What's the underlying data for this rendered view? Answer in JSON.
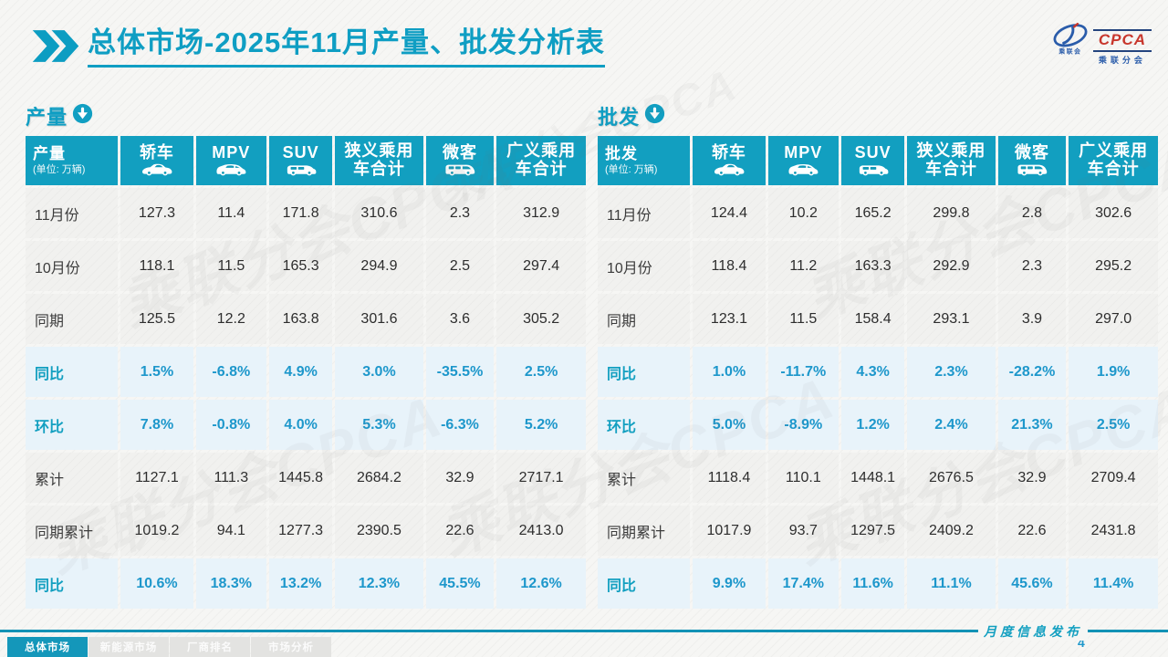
{
  "page": {
    "title_main": "总体市场",
    "title_rest": "-2025年11月产量、批发分析表",
    "watermark": "乘联分会CPCA",
    "footer_note": "月度信息发布",
    "page_number": "4"
  },
  "logo": {
    "name": "CPCA",
    "subtitle": "乘联分会"
  },
  "colors": {
    "accent_teal": "#129fc0",
    "percent_text": "#1d97cb",
    "value_row_bg": "#f1f1ef",
    "percent_row_bg": "#e8f3fa",
    "logo_red": "#c8372d",
    "logo_blue": "#2a5caa"
  },
  "tables": [
    {
      "id": "production",
      "section_label": "产量",
      "corner_title": "产量",
      "unit": "(单位: 万辆)",
      "columns": [
        {
          "label": "轿车",
          "icon": "sedan-icon"
        },
        {
          "label": "MPV",
          "icon": "mpv-icon"
        },
        {
          "label": "SUV",
          "icon": "suv-icon"
        },
        {
          "label": "狭义乘用车合计",
          "icon": null
        },
        {
          "label": "微客",
          "icon": "microvan-icon"
        },
        {
          "label": "广义乘用车合计",
          "icon": null
        }
      ],
      "rows": [
        {
          "label": "11月份",
          "style": "value",
          "cells": [
            "127.3",
            "11.4",
            "171.8",
            "310.6",
            "2.3",
            "312.9"
          ]
        },
        {
          "label": "10月份",
          "style": "value",
          "cells": [
            "118.1",
            "11.5",
            "165.3",
            "294.9",
            "2.5",
            "297.4"
          ]
        },
        {
          "label": "同期",
          "style": "value",
          "cells": [
            "125.5",
            "12.2",
            "163.8",
            "301.6",
            "3.6",
            "305.2"
          ]
        },
        {
          "label": "同比",
          "style": "percent",
          "cells": [
            "1.5%",
            "-6.8%",
            "4.9%",
            "3.0%",
            "-35.5%",
            "2.5%"
          ]
        },
        {
          "label": "环比",
          "style": "percent",
          "cells": [
            "7.8%",
            "-0.8%",
            "4.0%",
            "5.3%",
            "-6.3%",
            "5.2%"
          ]
        },
        {
          "label": "累计",
          "style": "value",
          "cells": [
            "1127.1",
            "111.3",
            "1445.8",
            "2684.2",
            "32.9",
            "2717.1"
          ]
        },
        {
          "label": "同期累计",
          "style": "value",
          "cells": [
            "1019.2",
            "94.1",
            "1277.3",
            "2390.5",
            "22.6",
            "2413.0"
          ]
        },
        {
          "label": "同比",
          "style": "percent",
          "cells": [
            "10.6%",
            "18.3%",
            "13.2%",
            "12.3%",
            "45.5%",
            "12.6%"
          ]
        }
      ]
    },
    {
      "id": "wholesale",
      "section_label": "批发",
      "corner_title": "批发",
      "unit": "(单位: 万辆)",
      "columns": [
        {
          "label": "轿车",
          "icon": "sedan-icon"
        },
        {
          "label": "MPV",
          "icon": "mpv-icon"
        },
        {
          "label": "SUV",
          "icon": "suv-icon"
        },
        {
          "label": "狭义乘用车合计",
          "icon": null
        },
        {
          "label": "微客",
          "icon": "microvan-icon"
        },
        {
          "label": "广义乘用车合计",
          "icon": null
        }
      ],
      "rows": [
        {
          "label": "11月份",
          "style": "value",
          "cells": [
            "124.4",
            "10.2",
            "165.2",
            "299.8",
            "2.8",
            "302.6"
          ]
        },
        {
          "label": "10月份",
          "style": "value",
          "cells": [
            "118.4",
            "11.2",
            "163.3",
            "292.9",
            "2.3",
            "295.2"
          ]
        },
        {
          "label": "同期",
          "style": "value",
          "cells": [
            "123.1",
            "11.5",
            "158.4",
            "293.1",
            "3.9",
            "297.0"
          ]
        },
        {
          "label": "同比",
          "style": "percent",
          "cells": [
            "1.0%",
            "-11.7%",
            "4.3%",
            "2.3%",
            "-28.2%",
            "1.9%"
          ]
        },
        {
          "label": "环比",
          "style": "percent",
          "cells": [
            "5.0%",
            "-8.9%",
            "1.2%",
            "2.4%",
            "21.3%",
            "2.5%"
          ]
        },
        {
          "label": "累计",
          "style": "value",
          "cells": [
            "1118.4",
            "110.1",
            "1448.1",
            "2676.5",
            "32.9",
            "2709.4"
          ]
        },
        {
          "label": "同期累计",
          "style": "value",
          "cells": [
            "1017.9",
            "93.7",
            "1297.5",
            "2409.2",
            "22.6",
            "2431.8"
          ]
        },
        {
          "label": "同比",
          "style": "percent",
          "cells": [
            "9.9%",
            "17.4%",
            "11.6%",
            "11.1%",
            "45.6%",
            "11.4%"
          ]
        }
      ]
    }
  ],
  "footer_tabs": [
    {
      "label": "总体市场",
      "active": true
    },
    {
      "label": "新能源市场",
      "active": false
    },
    {
      "label": "厂商排名",
      "active": false
    },
    {
      "label": "市场分析",
      "active": false
    }
  ]
}
